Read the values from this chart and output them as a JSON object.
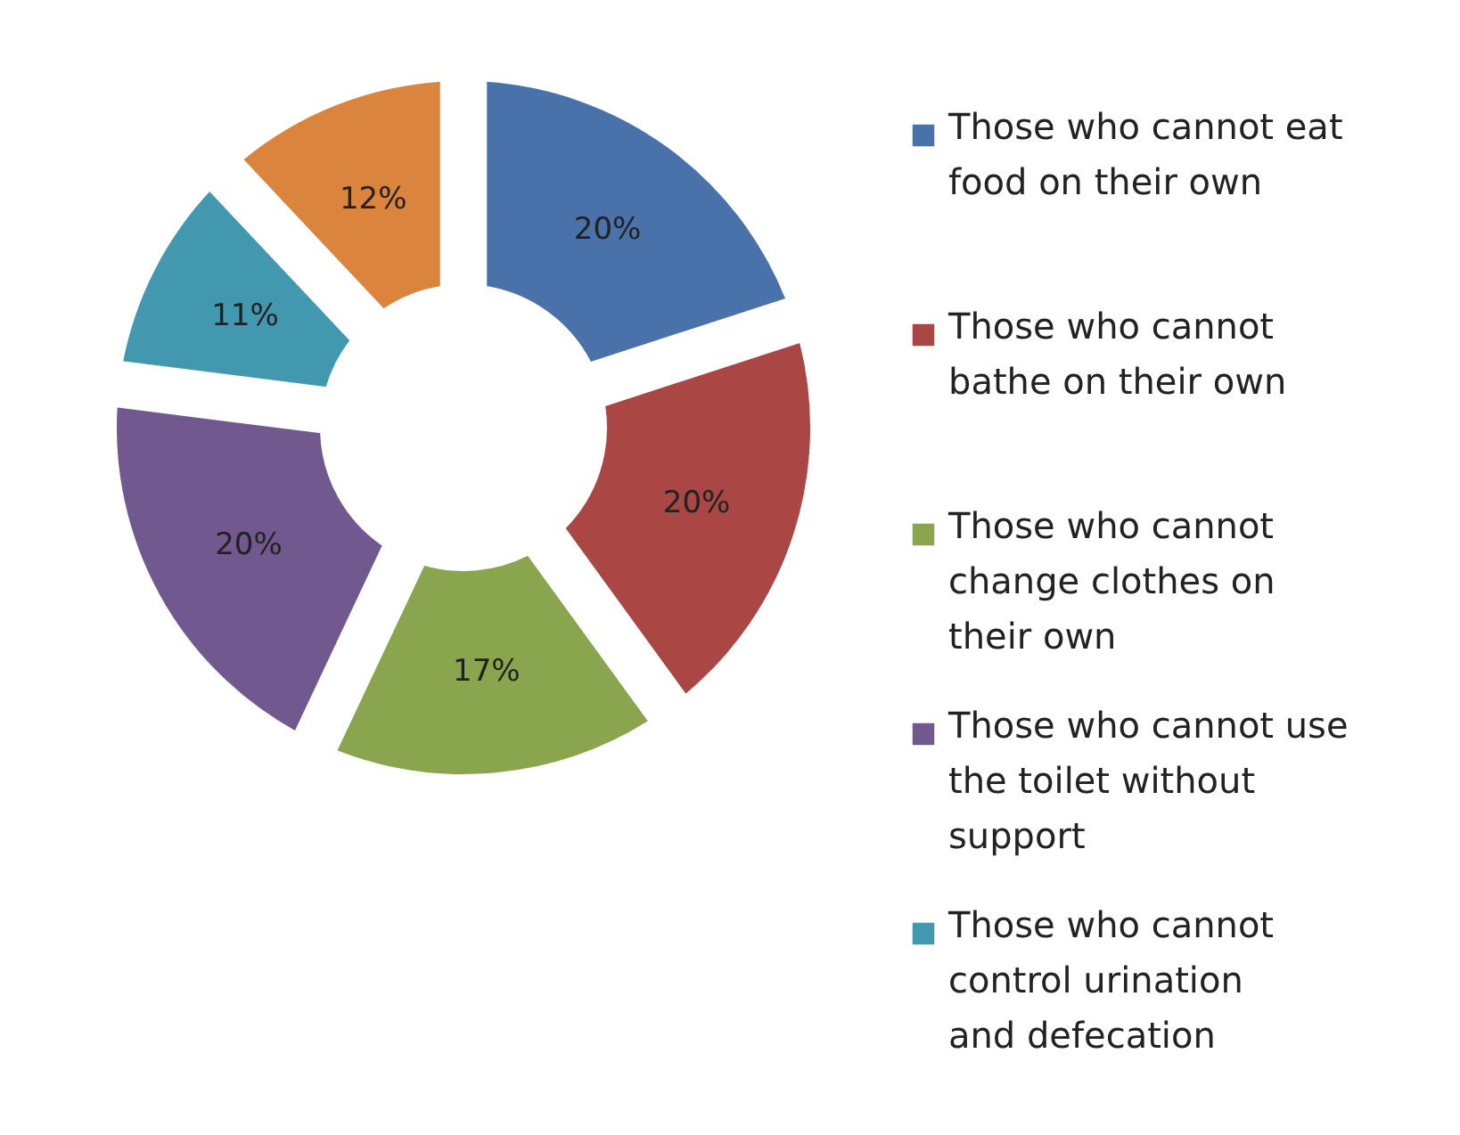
{
  "chart_data": {
    "type": "donut",
    "categories": [
      "Those who cannot eat food on their own",
      "Those who cannot bathe on their own",
      "Those who cannot change clothes on their own",
      "Those who cannot use the toilet without support",
      "Those who cannot control urination and defecation",
      null
    ],
    "values": [
      20,
      20,
      17,
      20,
      11,
      12
    ],
    "colors": [
      "#4a72aa",
      "#aa4644",
      "#89a54e",
      "#71588f",
      "#4198af",
      "#db843d"
    ],
    "value_labels": [
      "20%",
      "20%",
      "17%",
      "20%",
      "11%",
      "12%"
    ],
    "legend": "right"
  }
}
